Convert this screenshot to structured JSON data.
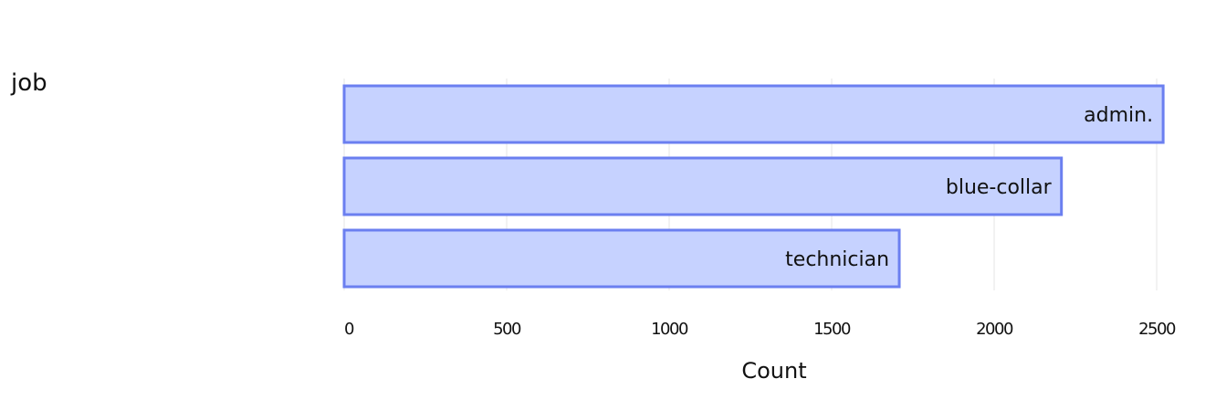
{
  "field": {
    "label": "job"
  },
  "colors": {
    "bar_fill": "#c6d2ff",
    "bar_stroke": "#6b7ff0",
    "grid": "#e6e6e6"
  },
  "chart_data": {
    "type": "bar",
    "orientation": "horizontal",
    "categories": [
      "admin.",
      "blue-collar",
      "technician"
    ],
    "values": [
      2520,
      2207,
      1708
    ],
    "xlabel": "Count",
    "ylabel": "",
    "xlim": [
      0,
      2500
    ],
    "xticks": [
      "0",
      "500",
      "1000",
      "1500",
      "2000",
      "2500"
    ],
    "grid": true,
    "legend": "none"
  }
}
